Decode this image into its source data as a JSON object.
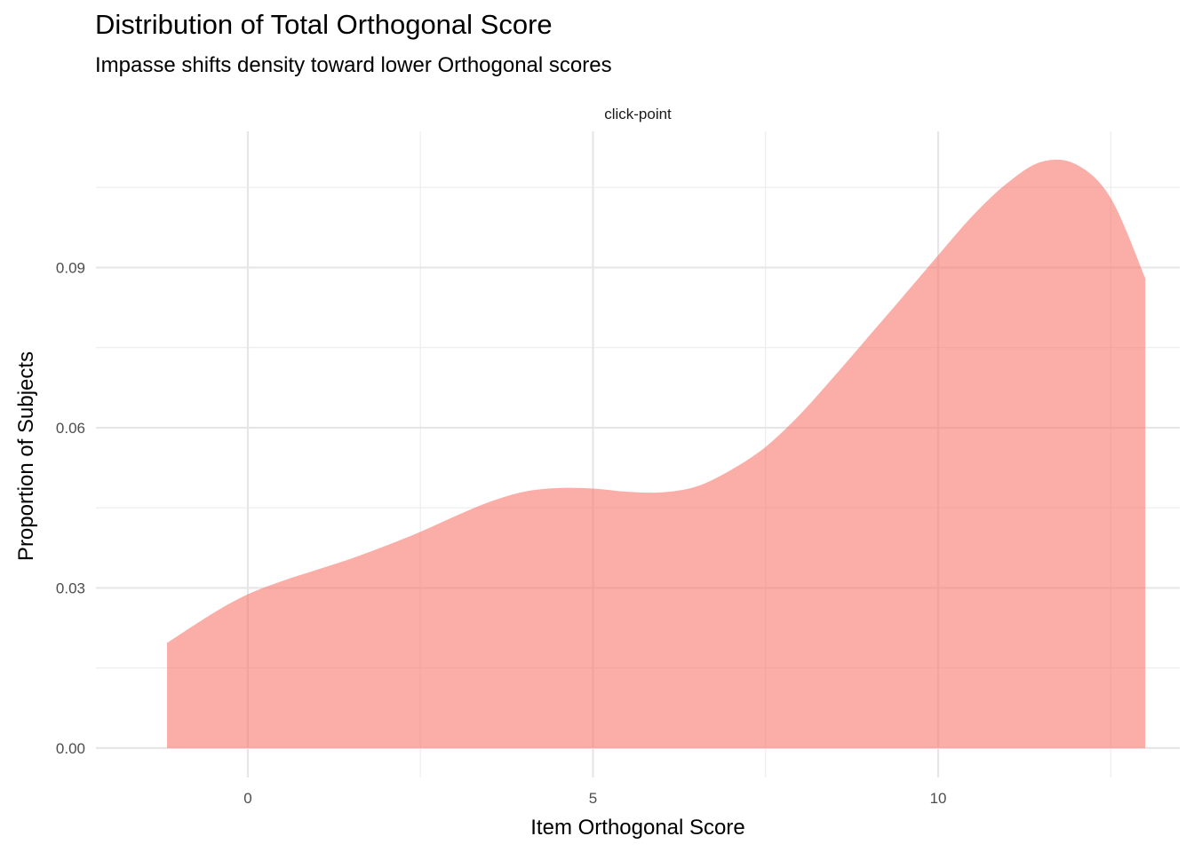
{
  "chart_data": {
    "type": "area",
    "title": "Distribution of Total Orthogonal Score",
    "subtitle": "Impasse shifts density toward lower Orthogonal scores",
    "facet_label": "click-point",
    "xlabel": "Item Orthogonal Score",
    "ylabel": "Proportion of Subjects",
    "xlim": [
      -2.2,
      13.5
    ],
    "ylim": [
      -0.0055,
      0.1155
    ],
    "x_ticks": [
      0,
      5,
      10
    ],
    "x_tick_labels": [
      "0",
      "5",
      "10"
    ],
    "y_ticks": [
      0,
      0.03,
      0.06,
      0.09
    ],
    "y_tick_labels": [
      "0.00",
      "0.03",
      "0.06",
      "0.09"
    ],
    "grid": true,
    "fill_color": "#F8766D",
    "fill_opacity": 0.6,
    "series": [
      {
        "x": [
          -1.17,
          -0.5,
          0,
          0.5,
          1,
          1.5,
          2,
          2.5,
          3,
          3.5,
          4,
          4.5,
          5,
          5.5,
          6,
          6.5,
          7,
          7.5,
          8,
          8.5,
          9,
          9.5,
          10,
          10.5,
          11,
          11.5,
          12,
          12.5,
          13
        ],
        "y": [
          0.0197,
          0.0253,
          0.0288,
          0.0313,
          0.0334,
          0.0355,
          0.0379,
          0.0405,
          0.0434,
          0.0461,
          0.048,
          0.0487,
          0.0486,
          0.048,
          0.0479,
          0.049,
          0.0521,
          0.0564,
          0.0625,
          0.0697,
          0.0772,
          0.0847,
          0.0923,
          0.0997,
          0.1058,
          0.1098,
          0.1093,
          0.103,
          0.088
        ]
      }
    ]
  }
}
